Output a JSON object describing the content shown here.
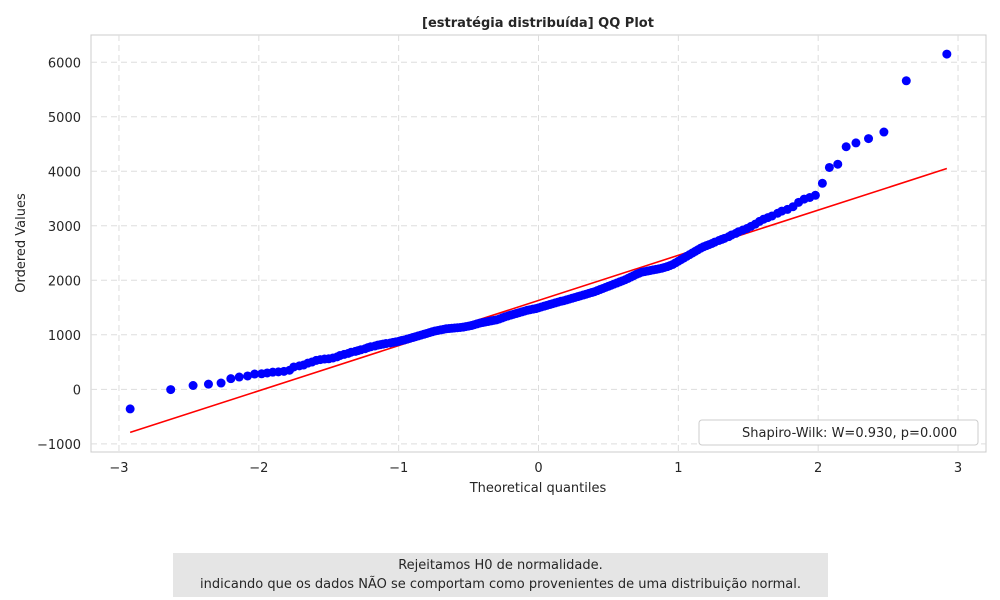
{
  "chart_data": {
    "type": "scatter",
    "title": "[estratégia distribuída] QQ Plot",
    "xlabel": "Theoretical quantiles",
    "ylabel": "Ordered Values",
    "xlim": [
      -3.2,
      3.2
    ],
    "ylim": [
      -1150,
      6500
    ],
    "xticks": [
      -3,
      -2,
      -1,
      0,
      1,
      2,
      3
    ],
    "xtick_labels": [
      "−3",
      "−2",
      "−1",
      "0",
      "1",
      "2",
      "3"
    ],
    "yticks": [
      -1000,
      0,
      1000,
      2000,
      3000,
      4000,
      5000,
      6000
    ],
    "ytick_labels": [
      "−1000",
      "0",
      "1000",
      "2000",
      "3000",
      "4000",
      "5000",
      "6000"
    ],
    "grid": true,
    "legend_position": "lower-right",
    "legend_label": "Shapiro-Wilk: W=0.930, p=0.000",
    "colors": {
      "points": "#0000ff",
      "fit_line": "#ff0000",
      "grid": "#dddddd",
      "frame": "#cccccc"
    },
    "fit_line": {
      "x": [
        -2.92,
        2.92
      ],
      "y": [
        -790,
        4050
      ]
    },
    "series": [
      {
        "values": [
          [
            -2.92,
            -360
          ],
          [
            -2.63,
            -5
          ],
          [
            -2.47,
            70
          ],
          [
            -2.36,
            95
          ],
          [
            -2.27,
            115
          ],
          [
            -2.2,
            195
          ],
          [
            -2.14,
            225
          ],
          [
            -2.08,
            245
          ],
          [
            -2.03,
            280
          ],
          [
            -1.98,
            285
          ],
          [
            -1.94,
            300
          ],
          [
            -1.9,
            315
          ],
          [
            -1.86,
            320
          ],
          [
            -1.82,
            330
          ],
          [
            -1.78,
            350
          ],
          [
            -1.75,
            410
          ],
          [
            -1.71,
            430
          ],
          [
            -1.68,
            445
          ],
          [
            -1.65,
            480
          ],
          [
            -1.62,
            500
          ],
          [
            -1.59,
            530
          ],
          [
            -1.56,
            545
          ],
          [
            -1.53,
            555
          ],
          [
            -1.5,
            560
          ],
          [
            -1.47,
            575
          ],
          [
            -1.44,
            595
          ],
          [
            -1.42,
            620
          ],
          [
            -1.39,
            640
          ],
          [
            -1.36,
            660
          ],
          [
            -1.34,
            680
          ],
          [
            -1.31,
            695
          ],
          [
            -1.29,
            710
          ],
          [
            -1.27,
            725
          ],
          [
            -1.24,
            745
          ],
          [
            -1.22,
            765
          ],
          [
            -1.2,
            780
          ],
          [
            -1.17,
            795
          ],
          [
            -1.15,
            810
          ],
          [
            -1.13,
            820
          ],
          [
            -1.11,
            830
          ],
          [
            -1.09,
            840
          ],
          [
            -1.06,
            850
          ],
          [
            -1.04,
            860
          ],
          [
            -1.02,
            870
          ],
          [
            -1,
            880
          ],
          [
            -0.98,
            895
          ],
          [
            -0.96,
            905
          ],
          [
            -0.94,
            920
          ],
          [
            -0.92,
            935
          ],
          [
            -0.9,
            950
          ],
          [
            -0.88,
            965
          ],
          [
            -0.86,
            980
          ],
          [
            -0.84,
            995
          ],
          [
            -0.82,
            1010
          ],
          [
            -0.8,
            1025
          ],
          [
            -0.78,
            1040
          ],
          [
            -0.76,
            1055
          ],
          [
            -0.74,
            1070
          ],
          [
            -0.72,
            1080
          ],
          [
            -0.7,
            1090
          ],
          [
            -0.68,
            1100
          ],
          [
            -0.66,
            1110
          ],
          [
            -0.64,
            1115
          ],
          [
            -0.62,
            1120
          ],
          [
            -0.6,
            1125
          ],
          [
            -0.58,
            1130
          ],
          [
            -0.56,
            1135
          ],
          [
            -0.54,
            1140
          ],
          [
            -0.52,
            1150
          ],
          [
            -0.5,
            1160
          ],
          [
            -0.48,
            1170
          ],
          [
            -0.46,
            1185
          ],
          [
            -0.44,
            1200
          ],
          [
            -0.42,
            1215
          ],
          [
            -0.4,
            1225
          ],
          [
            -0.38,
            1235
          ],
          [
            -0.36,
            1245
          ],
          [
            -0.34,
            1255
          ],
          [
            -0.32,
            1265
          ],
          [
            -0.3,
            1275
          ],
          [
            -0.28,
            1290
          ],
          [
            -0.26,
            1310
          ],
          [
            -0.24,
            1330
          ],
          [
            -0.22,
            1345
          ],
          [
            -0.2,
            1360
          ],
          [
            -0.18,
            1375
          ],
          [
            -0.16,
            1390
          ],
          [
            -0.14,
            1405
          ],
          [
            -0.12,
            1420
          ],
          [
            -0.1,
            1435
          ],
          [
            -0.08,
            1450
          ],
          [
            -0.06,
            1460
          ],
          [
            -0.04,
            1470
          ],
          [
            -0.02,
            1480
          ],
          [
            0,
            1495
          ],
          [
            0.02,
            1510
          ],
          [
            0.04,
            1525
          ],
          [
            0.06,
            1540
          ],
          [
            0.08,
            1555
          ],
          [
            0.1,
            1570
          ],
          [
            0.12,
            1585
          ],
          [
            0.14,
            1600
          ],
          [
            0.16,
            1615
          ],
          [
            0.18,
            1625
          ],
          [
            0.2,
            1640
          ],
          [
            0.22,
            1655
          ],
          [
            0.24,
            1670
          ],
          [
            0.26,
            1685
          ],
          [
            0.28,
            1700
          ],
          [
            0.3,
            1715
          ],
          [
            0.32,
            1730
          ],
          [
            0.34,
            1745
          ],
          [
            0.36,
            1760
          ],
          [
            0.38,
            1775
          ],
          [
            0.4,
            1790
          ],
          [
            0.42,
            1810
          ],
          [
            0.44,
            1830
          ],
          [
            0.46,
            1850
          ],
          [
            0.48,
            1870
          ],
          [
            0.5,
            1890
          ],
          [
            0.52,
            1910
          ],
          [
            0.54,
            1930
          ],
          [
            0.56,
            1950
          ],
          [
            0.58,
            1970
          ],
          [
            0.6,
            1990
          ],
          [
            0.62,
            2010
          ],
          [
            0.64,
            2035
          ],
          [
            0.66,
            2060
          ],
          [
            0.68,
            2085
          ],
          [
            0.7,
            2110
          ],
          [
            0.72,
            2130
          ],
          [
            0.74,
            2150
          ],
          [
            0.76,
            2160
          ],
          [
            0.78,
            2170
          ],
          [
            0.8,
            2180
          ],
          [
            0.82,
            2190
          ],
          [
            0.84,
            2200
          ],
          [
            0.86,
            2210
          ],
          [
            0.88,
            2220
          ],
          [
            0.9,
            2235
          ],
          [
            0.92,
            2250
          ],
          [
            0.94,
            2270
          ],
          [
            0.96,
            2290
          ],
          [
            0.98,
            2320
          ],
          [
            1,
            2350
          ],
          [
            1.02,
            2380
          ],
          [
            1.04,
            2410
          ],
          [
            1.06,
            2440
          ],
          [
            1.08,
            2470
          ],
          [
            1.1,
            2500
          ],
          [
            1.12,
            2530
          ],
          [
            1.14,
            2560
          ],
          [
            1.16,
            2590
          ],
          [
            1.18,
            2615
          ],
          [
            1.2,
            2635
          ],
          [
            1.22,
            2655
          ],
          [
            1.24,
            2675
          ],
          [
            1.26,
            2700
          ],
          [
            1.29,
            2730
          ],
          [
            1.31,
            2750
          ],
          [
            1.33,
            2770
          ],
          [
            1.36,
            2800
          ],
          [
            1.38,
            2830
          ],
          [
            1.41,
            2860
          ],
          [
            1.43,
            2890
          ],
          [
            1.46,
            2920
          ],
          [
            1.49,
            2950
          ],
          [
            1.52,
            2990
          ],
          [
            1.55,
            3030
          ],
          [
            1.58,
            3080
          ],
          [
            1.61,
            3120
          ],
          [
            1.64,
            3150
          ],
          [
            1.67,
            3180
          ],
          [
            1.71,
            3230
          ],
          [
            1.74,
            3270
          ],
          [
            1.78,
            3300
          ],
          [
            1.82,
            3350
          ],
          [
            1.86,
            3430
          ],
          [
            1.9,
            3490
          ],
          [
            1.94,
            3520
          ],
          [
            1.98,
            3560
          ],
          [
            2.03,
            3780
          ],
          [
            2.08,
            4070
          ],
          [
            2.14,
            4130
          ],
          [
            2.2,
            4450
          ],
          [
            2.27,
            4520
          ],
          [
            2.36,
            4600
          ],
          [
            2.47,
            4720
          ],
          [
            2.63,
            5660
          ],
          [
            2.92,
            6150
          ]
        ]
      }
    ]
  },
  "caption": {
    "line1": "Rejeitamos H0 de normalidade.",
    "line2": "indicando que os dados NÃO se comportam como provenientes de uma distribuição normal."
  }
}
